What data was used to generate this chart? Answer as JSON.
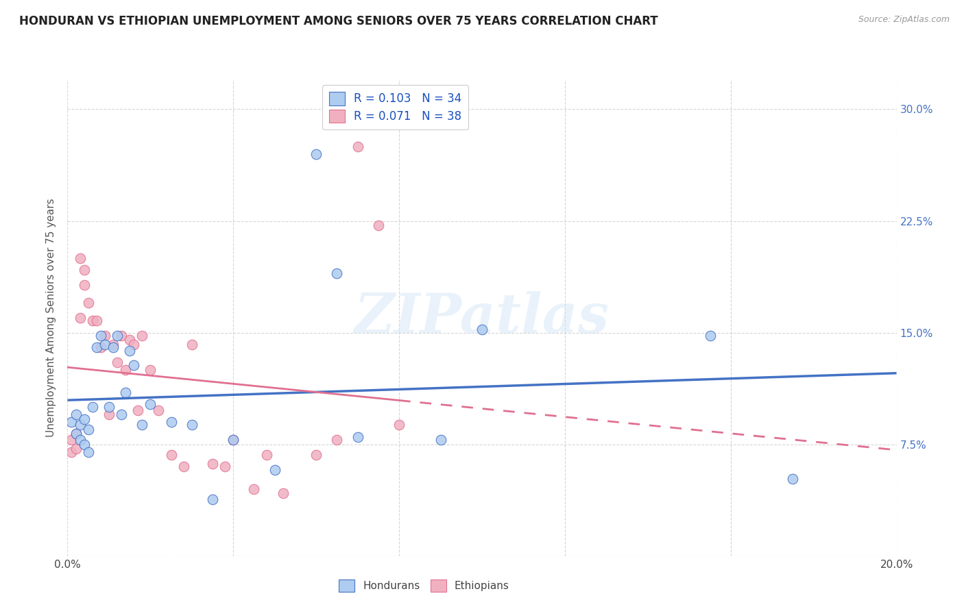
{
  "title": "HONDURAN VS ETHIOPIAN UNEMPLOYMENT AMONG SENIORS OVER 75 YEARS CORRELATION CHART",
  "source": "Source: ZipAtlas.com",
  "ylabel": "Unemployment Among Seniors over 75 years",
  "xlim": [
    0.0,
    0.2
  ],
  "ylim": [
    0.0,
    0.32
  ],
  "xticks": [
    0.0,
    0.04,
    0.08,
    0.12,
    0.16,
    0.2
  ],
  "xticklabels": [
    "0.0%",
    "",
    "",
    "",
    "",
    "20.0%"
  ],
  "yticks": [
    0.0,
    0.075,
    0.15,
    0.225,
    0.3
  ],
  "right_yticklabels": [
    "",
    "7.5%",
    "15.0%",
    "22.5%",
    "30.0%"
  ],
  "honduran_color": "#aecbf0",
  "ethiopian_color": "#f0b0c0",
  "line_honduran_color": "#4472c4",
  "line_ethiopian_color": "#e07090",
  "honduran_R": 0.103,
  "honduran_N": 34,
  "ethiopian_R": 0.071,
  "ethiopian_N": 38,
  "legend_label_honduran": "Hondurans",
  "legend_label_ethiopian": "Ethiopians",
  "watermark": "ZIPatlas",
  "honduran_x": [
    0.001,
    0.002,
    0.002,
    0.003,
    0.003,
    0.004,
    0.004,
    0.005,
    0.005,
    0.006,
    0.007,
    0.008,
    0.009,
    0.01,
    0.011,
    0.012,
    0.013,
    0.014,
    0.015,
    0.016,
    0.018,
    0.02,
    0.025,
    0.03,
    0.035,
    0.04,
    0.05,
    0.06,
    0.065,
    0.07,
    0.09,
    0.1,
    0.155,
    0.175
  ],
  "honduran_y": [
    0.09,
    0.095,
    0.082,
    0.088,
    0.078,
    0.092,
    0.075,
    0.085,
    0.07,
    0.1,
    0.14,
    0.148,
    0.142,
    0.1,
    0.14,
    0.148,
    0.095,
    0.11,
    0.138,
    0.128,
    0.088,
    0.102,
    0.09,
    0.088,
    0.038,
    0.078,
    0.058,
    0.27,
    0.19,
    0.08,
    0.078,
    0.152,
    0.148,
    0.052
  ],
  "ethiopian_x": [
    0.001,
    0.001,
    0.002,
    0.002,
    0.003,
    0.003,
    0.004,
    0.004,
    0.005,
    0.006,
    0.007,
    0.008,
    0.009,
    0.01,
    0.011,
    0.012,
    0.013,
    0.014,
    0.015,
    0.016,
    0.017,
    0.018,
    0.02,
    0.022,
    0.025,
    0.028,
    0.03,
    0.035,
    0.038,
    0.04,
    0.045,
    0.048,
    0.052,
    0.06,
    0.065,
    0.07,
    0.075,
    0.08
  ],
  "ethiopian_y": [
    0.078,
    0.07,
    0.082,
    0.072,
    0.16,
    0.2,
    0.182,
    0.192,
    0.17,
    0.158,
    0.158,
    0.14,
    0.148,
    0.095,
    0.142,
    0.13,
    0.148,
    0.125,
    0.145,
    0.142,
    0.098,
    0.148,
    0.125,
    0.098,
    0.068,
    0.06,
    0.142,
    0.062,
    0.06,
    0.078,
    0.045,
    0.068,
    0.042,
    0.068,
    0.078,
    0.275,
    0.222,
    0.088
  ]
}
